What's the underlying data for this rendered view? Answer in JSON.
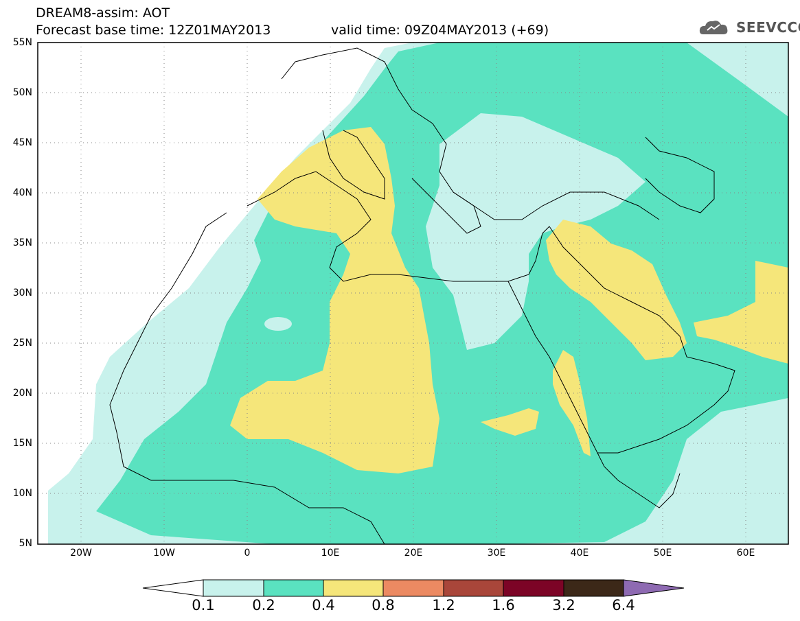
{
  "header": {
    "title_line1": "DREAM8-assim: AOT",
    "title_line2": "Forecast base time: 12Z01MAY2013",
    "valid_time": "valid time: 09Z04MAY2013 (+69)",
    "logo_text": "SEEVCCC",
    "logo_icon": "cloud-logo-icon"
  },
  "map": {
    "variable": "AOT",
    "lon_range": [
      -25,
      65
    ],
    "lat_range": [
      5,
      55
    ],
    "lat_ticks": [
      "55N",
      "50N",
      "45N",
      "40N",
      "35N",
      "30N",
      "25N",
      "20N",
      "15N",
      "10N",
      "5N"
    ],
    "lon_ticks": [
      "20W",
      "10W",
      "0",
      "10E",
      "20E",
      "30E",
      "40E",
      "50E",
      "60E"
    ],
    "grid": true
  },
  "colorbar": {
    "labels": [
      "0.1",
      "0.2",
      "0.4",
      "0.8",
      "1.2",
      "1.6",
      "3.2",
      "6.4"
    ],
    "colors": [
      "#ffffff",
      "#c8f2ec",
      "#5ae2c0",
      "#f5e67a",
      "#ec8a62",
      "#a9463a",
      "#7c0426",
      "#3c2818",
      "#8e6ab2"
    ]
  }
}
